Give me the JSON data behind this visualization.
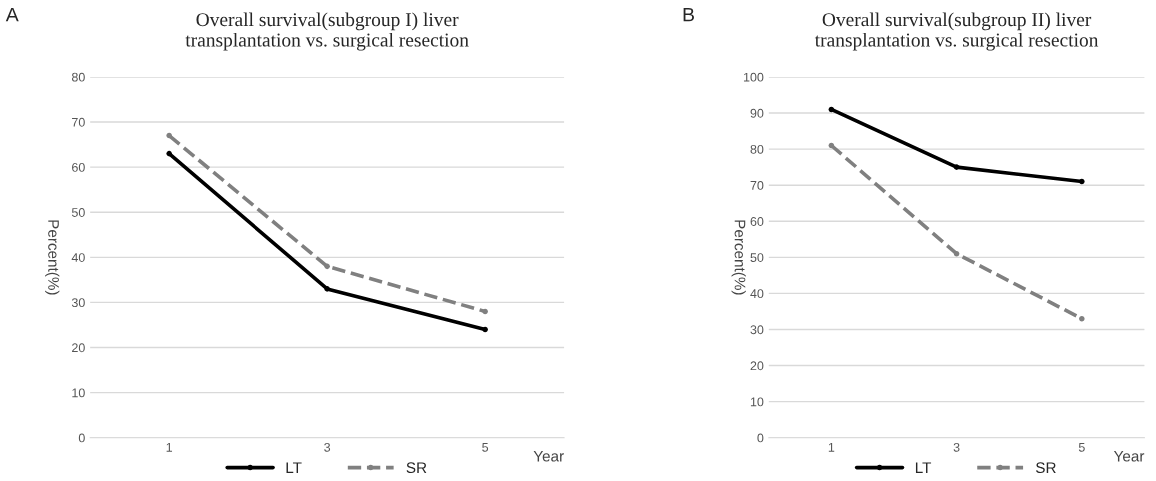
{
  "chart_data": [
    {
      "type": "line",
      "title": "Overall survival(subgroup I) liver\ntransplantation vs. surgical resection",
      "xlabel": "Year",
      "ylabel": "Percent(%)",
      "annotations": [
        "A"
      ],
      "categories": [
        "1",
        "3",
        "5"
      ],
      "ylim": [
        0,
        80
      ],
      "yticks": [
        0,
        10,
        20,
        30,
        40,
        50,
        60,
        70,
        80
      ],
      "grid": "y",
      "legend": "bottom",
      "marker": "circle",
      "series": [
        {
          "name": "LT",
          "color": "#000000",
          "line_style": "solid",
          "values": [
            63,
            33,
            24
          ]
        },
        {
          "name": "SR",
          "color": "#808080",
          "line_style": "dashed",
          "values": [
            67,
            38,
            28
          ]
        }
      ]
    },
    {
      "type": "line",
      "title": "Overall survival(subgroup II) liver\ntransplantation vs. surgical resection",
      "xlabel": "Year",
      "ylabel": "Percent(%)",
      "annotations": [
        "B"
      ],
      "categories": [
        "1",
        "3",
        "5"
      ],
      "ylim": [
        0,
        100
      ],
      "yticks": [
        0,
        10,
        20,
        30,
        40,
        50,
        60,
        70,
        80,
        90,
        100
      ],
      "grid": "y",
      "legend": "bottom",
      "marker": "circle",
      "series": [
        {
          "name": "LT",
          "color": "#000000",
          "line_style": "solid",
          "values": [
            91,
            75,
            71
          ]
        },
        {
          "name": "SR",
          "color": "#808080",
          "line_style": "dashed",
          "values": [
            81,
            51,
            33
          ]
        }
      ]
    }
  ]
}
